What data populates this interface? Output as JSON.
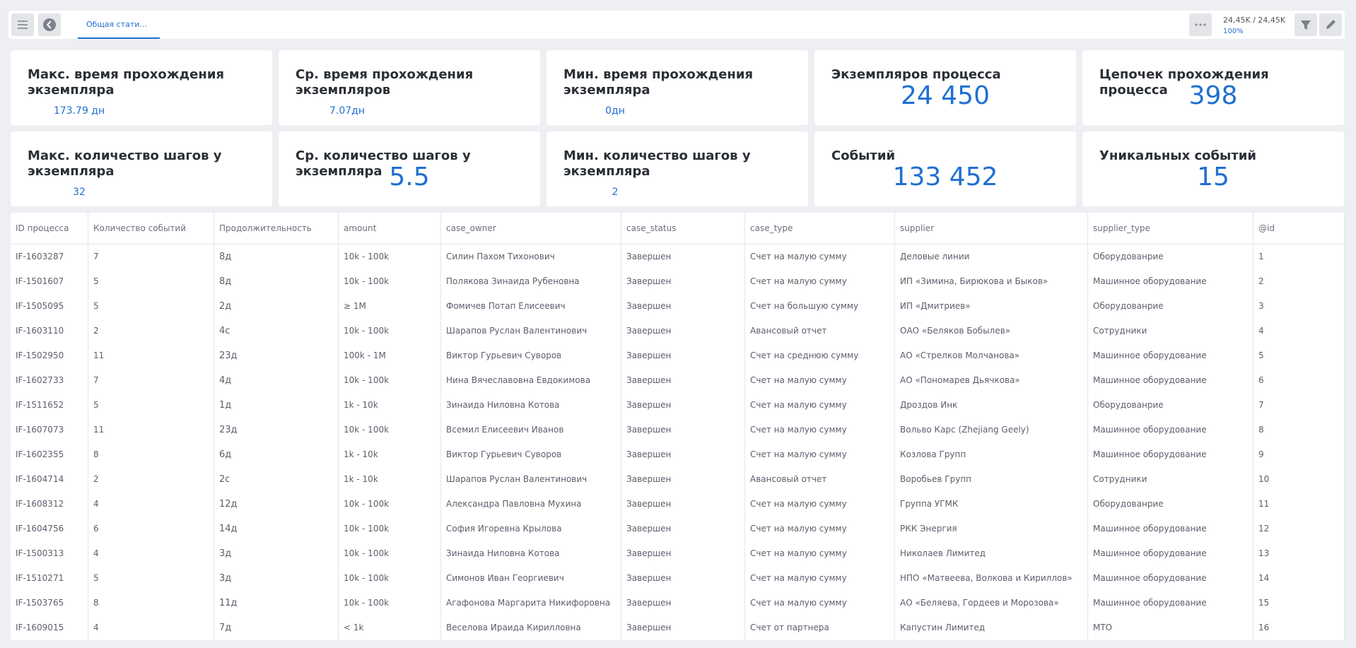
{
  "toolbar": {
    "tab": "Общая стати...",
    "counter": "24,45K / 24,45K",
    "percent": "100%"
  },
  "cards": [
    {
      "title": "Макс. время прохождения экземпляра",
      "value": "173.79 дн"
    },
    {
      "title": "Ср. время прохождения экземпляров",
      "value": "7.07дн"
    },
    {
      "title": "Мин. время прохождения экземпляра",
      "value": "0дн"
    },
    {
      "title": "Экземпляров процесса",
      "value": "24 450"
    },
    {
      "title": "Цепочек прохождения процесса",
      "value": "398"
    },
    {
      "title": "Макс. количество шагов у экземпляра",
      "value": "32"
    },
    {
      "title": "Ср. количество шагов у экземпляра",
      "value": "5.5"
    },
    {
      "title": "Мин. количество шагов у экземпляра",
      "value": "2"
    },
    {
      "title": "Событий",
      "value": "133 452"
    },
    {
      "title": "Уникальных событий",
      "value": "15"
    }
  ],
  "table": {
    "columns": [
      "ID процесса",
      "Количество событий",
      "Продолжительность",
      "amount",
      "case_owner",
      "case_status",
      "case_type",
      "supplier",
      "supplier_type",
      "@id"
    ],
    "rows": [
      [
        "IF-1603287",
        "7",
        "8д",
        "10k - 100k",
        "Силин Пахом Тихонович",
        "Завершен",
        "Счет на малую сумму",
        "Деловые линии",
        "Оборудованрие",
        "1"
      ],
      [
        "IF-1501607",
        "5",
        "8д",
        "10k - 100k",
        "Полякова Зинаида Рубеновна",
        "Завершен",
        "Счет на малую сумму",
        "ИП «Зимина, Бирюкова и Быков»",
        "Машинное оборудование",
        "2"
      ],
      [
        "IF-1505095",
        "5",
        "2д",
        "≥ 1M",
        "Фомичев Потап Елисеевич",
        "Завершен",
        "Счет на большую сумму",
        "ИП «Дмитриев»",
        "Оборудованрие",
        "3"
      ],
      [
        "IF-1603110",
        "2",
        "4с",
        "10k - 100k",
        "Шарапов Руслан Валентинович",
        "Завершен",
        "Авансовый отчет",
        "ОАО «Беляков Бобылев»",
        "Сотрудники",
        "4"
      ],
      [
        "IF-1502950",
        "11",
        "23д",
        "100k - 1M",
        "Виктор Гурьевич Суворов",
        "Завершен",
        "Счет на среднюю сумму",
        "АО «Стрелков Молчанова»",
        "Машинное оборудование",
        "5"
      ],
      [
        "IF-1602733",
        "7",
        "4д",
        "10k - 100k",
        "Нина Вячеславовна Евдокимова",
        "Завершен",
        "Счет на малую сумму",
        "АО «Пономарев Дьячкова»",
        "Машинное оборудование",
        "6"
      ],
      [
        "IF-1511652",
        "5",
        "1д",
        "1k - 10k",
        "Зинаида Ниловна Котова",
        "Завершен",
        "Счет на малую сумму",
        "Дроздов Инк",
        "Оборудованрие",
        "7"
      ],
      [
        "IF-1607073",
        "11",
        "23д",
        "10k - 100k",
        "Всемил Елисеевич Иванов",
        "Завершен",
        "Счет на малую сумму",
        "Вольво Карс (Zhejiang Geely)",
        "Машинное оборудование",
        "8"
      ],
      [
        "IF-1602355",
        "8",
        "6д",
        "1k - 10k",
        "Виктор Гурьевич Суворов",
        "Завершен",
        "Счет на малую сумму",
        "Козлова Групп",
        "Машинное оборудование",
        "9"
      ],
      [
        "IF-1604714",
        "2",
        "2с",
        "1k - 10k",
        "Шарапов Руслан Валентинович",
        "Завершен",
        "Авансовый отчет",
        "Воробьев Групп",
        "Сотрудники",
        "10"
      ],
      [
        "IF-1608312",
        "4",
        "12д",
        "10k - 100k",
        "Александра Павловна Мухина",
        "Завершен",
        "Счет на малую сумму",
        "Группа УГМК",
        "Оборудованрие",
        "11"
      ],
      [
        "IF-1604756",
        "6",
        "14д",
        "10k - 100k",
        "София Игоревна Крылова",
        "Завершен",
        "Счет на малую сумму",
        "РКК Энергия",
        "Машинное оборудование",
        "12"
      ],
      [
        "IF-1500313",
        "4",
        "3д",
        "10k - 100k",
        "Зинаида Ниловна Котова",
        "Завершен",
        "Счет на малую сумму",
        "Николаев Лимитед",
        "Машинное оборудование",
        "13"
      ],
      [
        "IF-1510271",
        "5",
        "3д",
        "10k - 100k",
        "Симонов Иван Георгиевич",
        "Завершен",
        "Счет на малую сумму",
        "НПО «Матвеева, Волкова и Кириллов»",
        "Машинное оборудование",
        "14"
      ],
      [
        "IF-1503765",
        "8",
        "11д",
        "10k - 100k",
        "Агафонова Маргарита Никифоровна",
        "Завершен",
        "Счет на малую сумму",
        "АО «Беляева, Гордеев и Морозова»",
        "Машинное оборудование",
        "15"
      ],
      [
        "IF-1609015",
        "4",
        "7д",
        "< 1k",
        "Веселова Ираида Кирилловна",
        "Завершен",
        "Счет от партнера",
        "Капустин Лимитед",
        "МТО",
        "16"
      ]
    ]
  }
}
